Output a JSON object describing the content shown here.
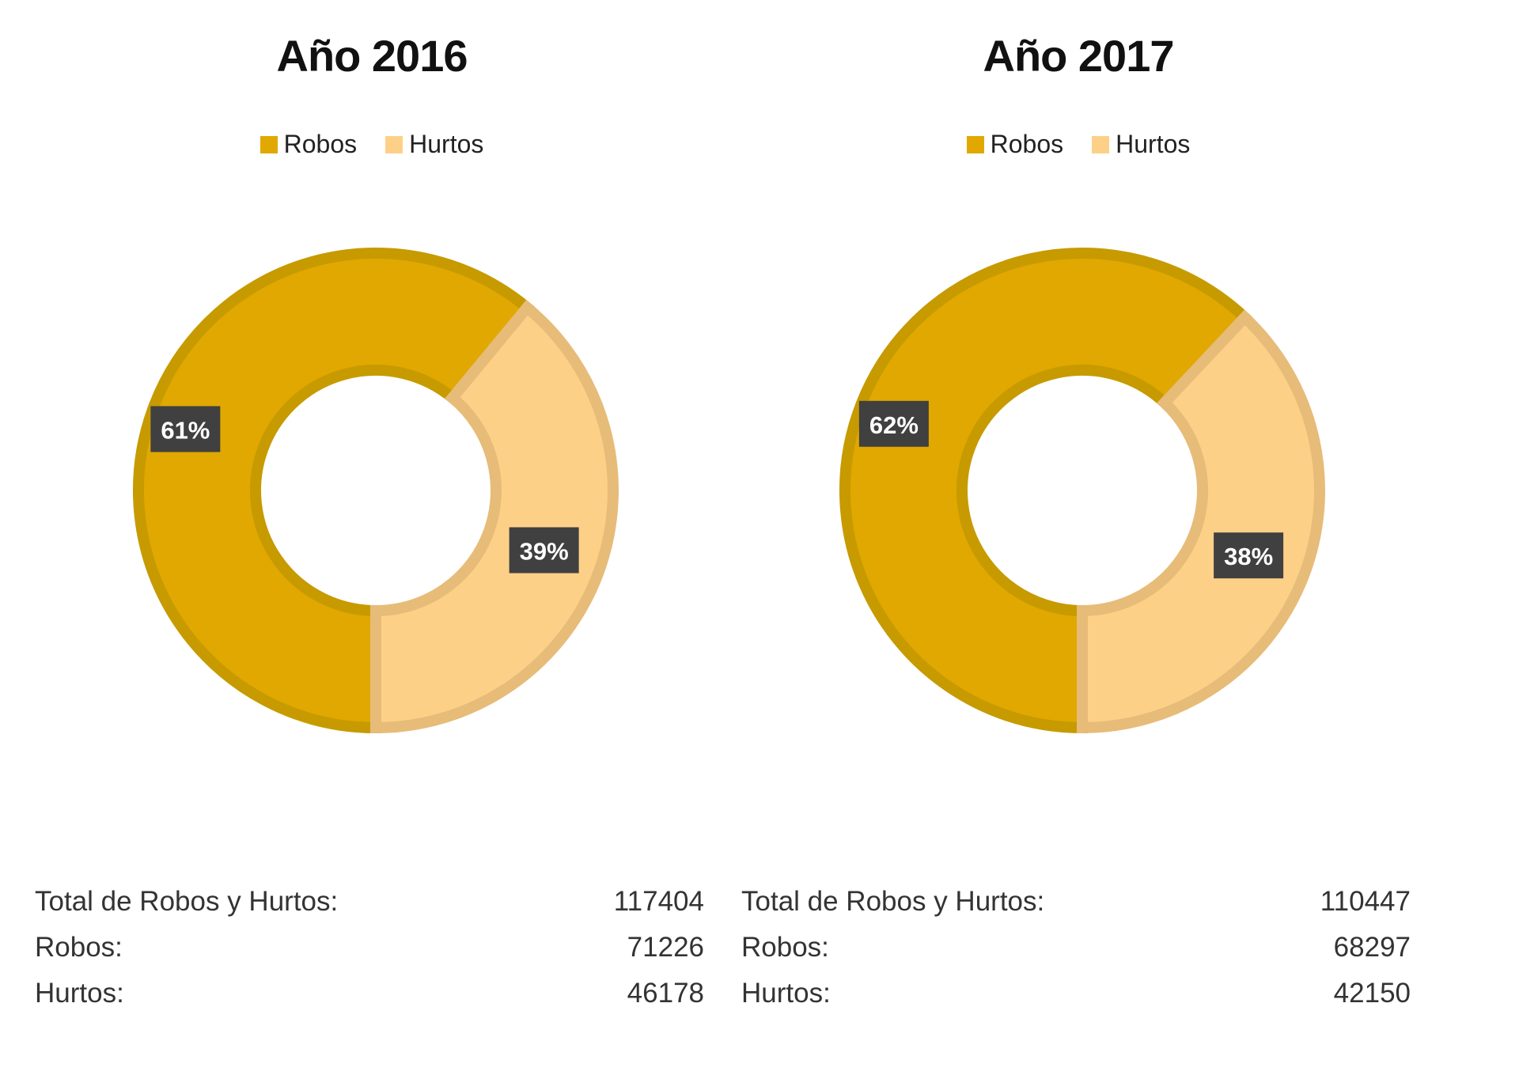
{
  "chart_data": [
    {
      "type": "pie",
      "title": "Año 2016",
      "categories": [
        "Robos",
        "Hurtos"
      ],
      "values": [
        61,
        39
      ],
      "data_labels": [
        "61%",
        "39%"
      ],
      "legend_position": "top",
      "colors": [
        "#E0A800",
        "#FDD088"
      ],
      "stats": [
        {
          "label": "Total de Robos y Hurtos:",
          "value": "117404"
        },
        {
          "label": "Robos:",
          "value": "71226"
        },
        {
          "label": "Hurtos:",
          "value": "46178"
        }
      ]
    },
    {
      "type": "pie",
      "title": "Año 2017",
      "categories": [
        "Robos",
        "Hurtos"
      ],
      "values": [
        62,
        38
      ],
      "data_labels": [
        "62%",
        "38%"
      ],
      "legend_position": "top",
      "colors": [
        "#E0A800",
        "#FDD088"
      ],
      "stats": [
        {
          "label": "Total de Robos y Hurtos:",
          "value": "110447"
        },
        {
          "label": "Robos:",
          "value": "68297"
        },
        {
          "label": "Hurtos:",
          "value": "42150"
        }
      ]
    }
  ]
}
